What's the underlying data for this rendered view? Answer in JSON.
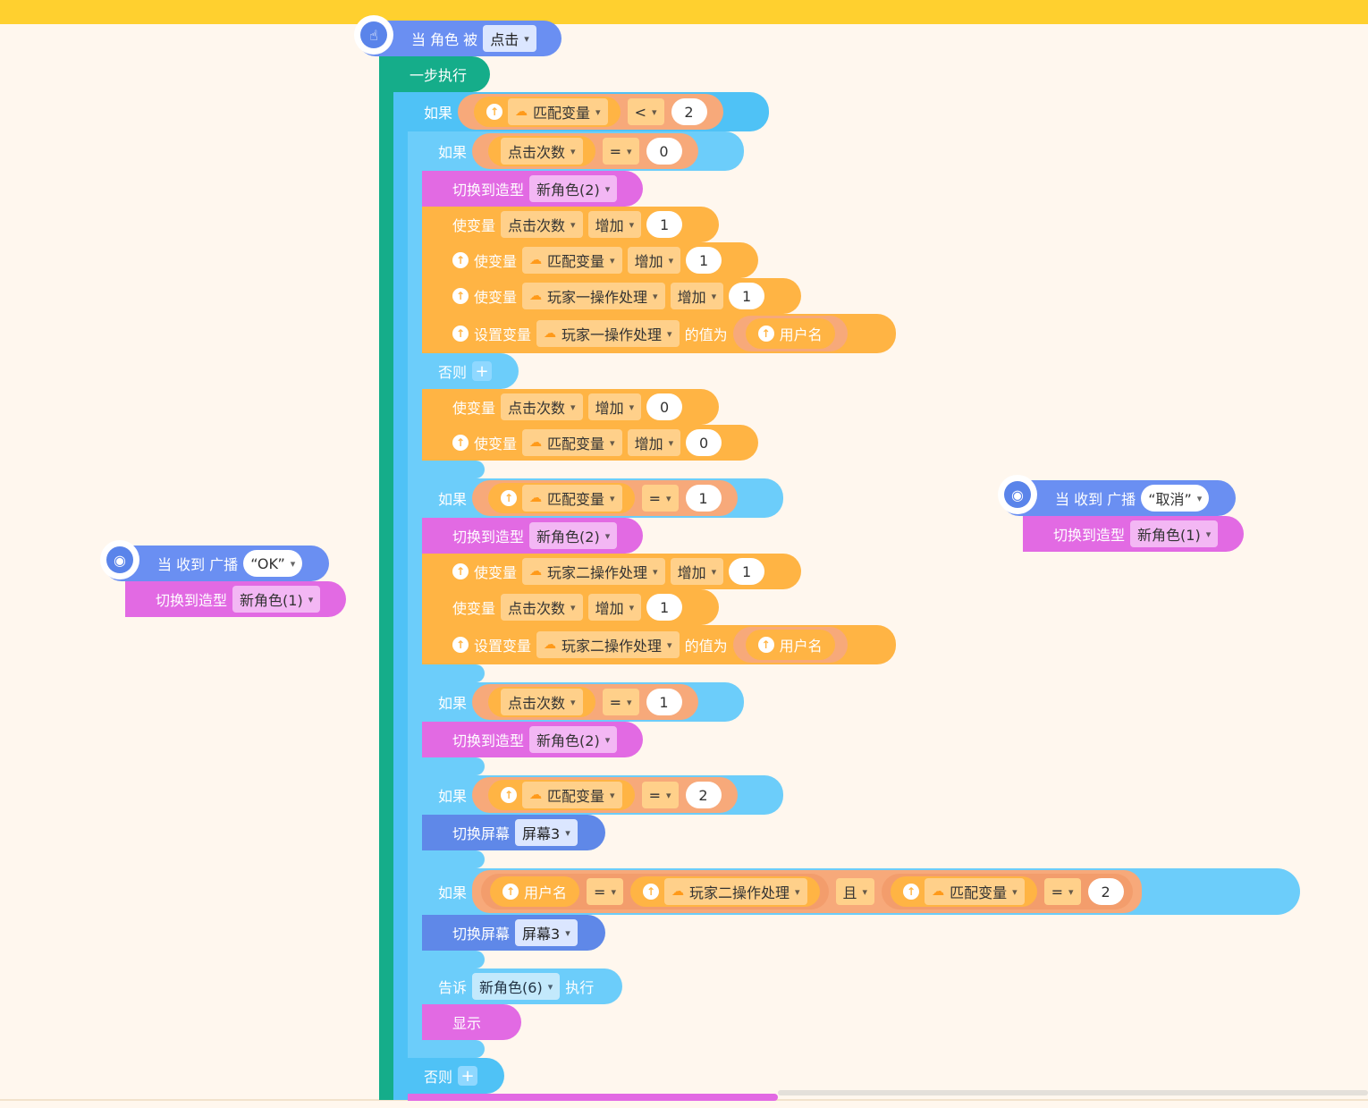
{
  "colors": {
    "control": "#4fc2f6",
    "operator": "#ffb444",
    "looks": "#e26ae3",
    "events": "#6a8ff2",
    "topbar": "#ffd02f"
  },
  "icons": [
    "hand-pointer-icon",
    "broadcast-icon",
    "cloud-icon",
    "upload-icon",
    "plus-icon",
    "chevron-down-icon"
  ],
  "main_hat": {
    "label_a": "当 角色 被",
    "event": "点击"
  },
  "step": {
    "label": "一步执行"
  },
  "labels": {
    "if": "如果",
    "else": "否则",
    "switch_costume": "切换到造型",
    "change_var": "使变量",
    "set_var": "设置变量",
    "value_is": "的值为",
    "switch_screen": "切换屏幕",
    "tell": "告诉",
    "execute": "执行",
    "show": "显示",
    "and": "且",
    "increase": "增加",
    "username": "用户名"
  },
  "vars": {
    "match": "匹配变量",
    "clicks": "点击次数",
    "p1": "玩家一操作处理",
    "p2": "玩家二操作处理"
  },
  "ops": {
    "lt": "<",
    "eq": "="
  },
  "costumes": {
    "c1": "新角色(1)",
    "c2": "新角色(2)",
    "c6": "新角色(6)"
  },
  "screens": {
    "s3": "屏幕3"
  },
  "nums": {
    "n0": "0",
    "n1": "1",
    "n2": "2"
  },
  "left_hat": {
    "label": "当 收到 广播",
    "message": "“OK”"
  },
  "right_hat": {
    "label": "当 收到 广播",
    "message": "“取消”"
  }
}
